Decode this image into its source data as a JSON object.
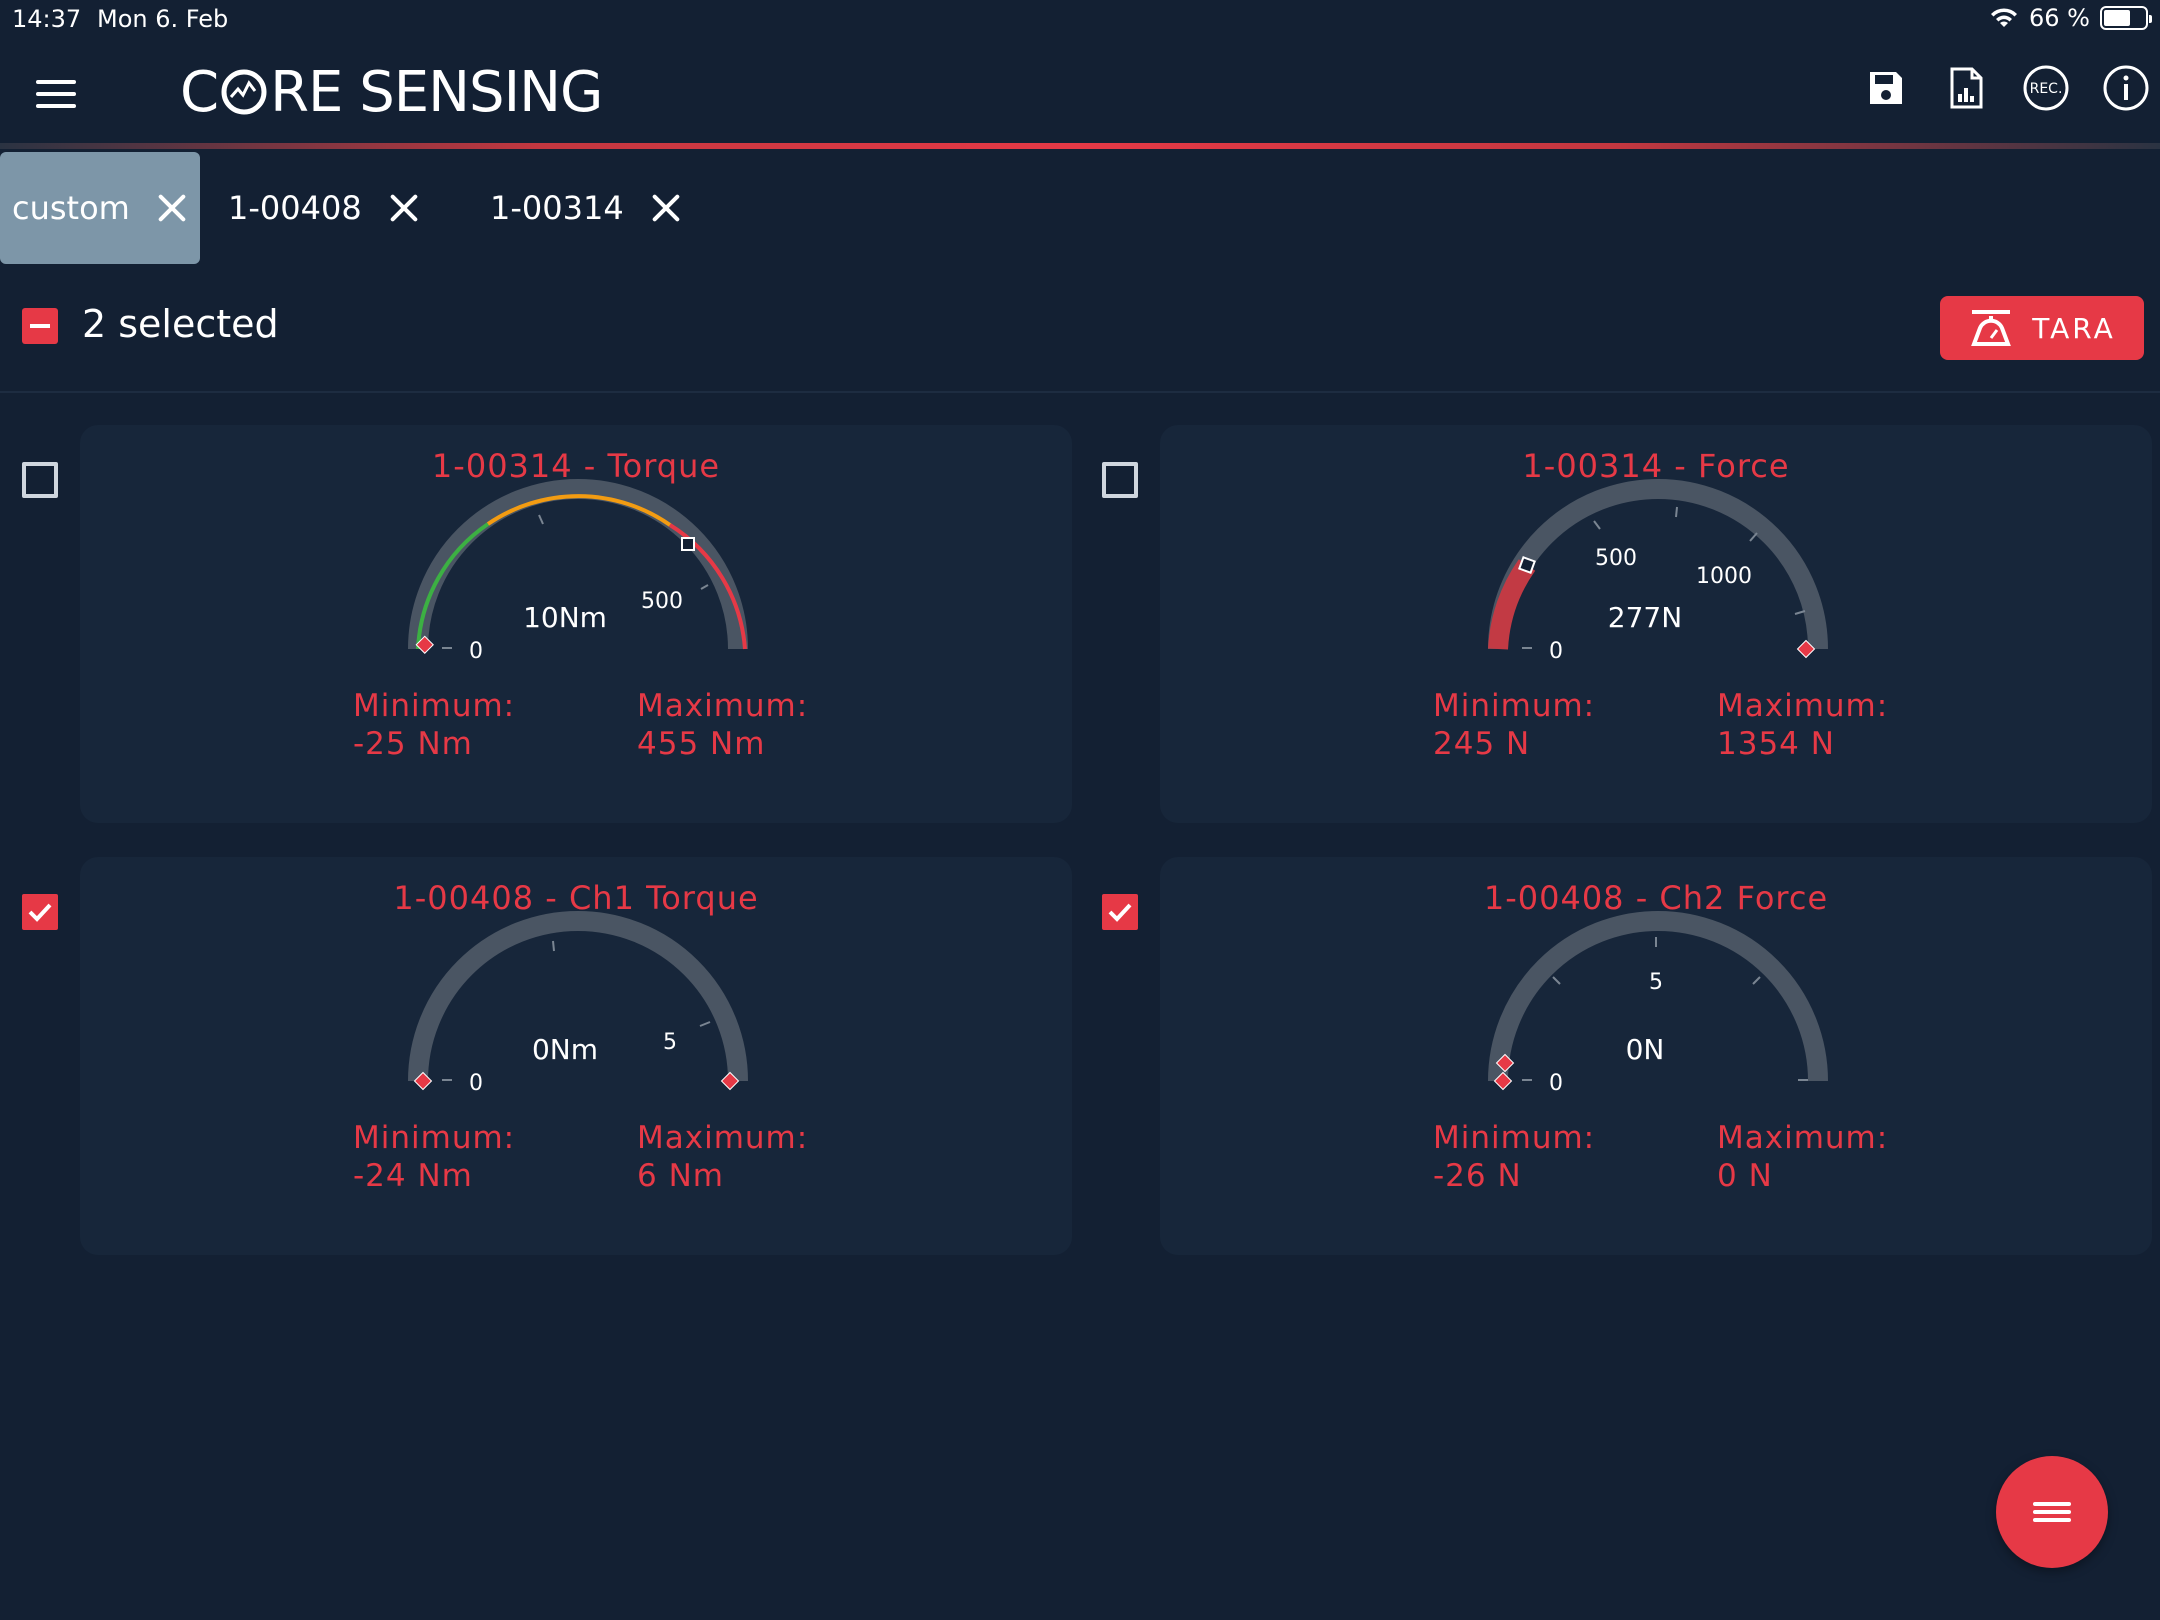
{
  "status_bar": {
    "time": "14:37",
    "date": "Mon 6. Feb",
    "battery": "66 %",
    "battery_level": 0.66
  },
  "header": {
    "brand_pre": "C",
    "brand_post": "RE SENSING",
    "icons": [
      "save-icon",
      "report-icon",
      "rec-icon",
      "info-icon"
    ],
    "rec_text": "REC."
  },
  "tabs": [
    {
      "label": "custom",
      "active": true
    },
    {
      "label": "1-00408",
      "active": false
    },
    {
      "label": "1-00314",
      "active": false
    }
  ],
  "selection": {
    "label": "2 selected",
    "tara_label": "TARA"
  },
  "gauges": [
    {
      "title": "1-00314 - Torque",
      "value_text": "10Nm",
      "ticks": [
        "0",
        "500"
      ],
      "min_label": "Minimum:",
      "min_value": "-25 Nm",
      "max_label": "Maximum:",
      "max_value": "455 Nm",
      "checked": false
    },
    {
      "title": "1-00314 - Force",
      "value_text": "277N",
      "ticks": [
        "0",
        "500",
        "1000"
      ],
      "min_label": "Minimum:",
      "min_value": "245 N",
      "max_label": "Maximum:",
      "max_value": "1354 N",
      "checked": false
    },
    {
      "title": "1-00408 - Ch1 Torque",
      "value_text": "0Nm",
      "ticks": [
        "0",
        "5"
      ],
      "min_label": "Minimum:",
      "min_value": "-24 Nm",
      "max_label": "Maximum:",
      "max_value": "6 Nm",
      "checked": true
    },
    {
      "title": "1-00408 - Ch2 Force",
      "value_text": "0N",
      "ticks": [
        "0",
        "5"
      ],
      "min_label": "Minimum:",
      "min_value": "-26 N",
      "max_label": "Maximum:",
      "max_value": "0 N",
      "checked": true
    }
  ],
  "colors": {
    "accent": "#e63946",
    "background": "#132033",
    "card": "#17263a",
    "track": "#4a5563",
    "tab_active": "#7d96a8",
    "zone_green": "#3cb043",
    "zone_orange": "#f39c12",
    "zone_red": "#e63946"
  }
}
